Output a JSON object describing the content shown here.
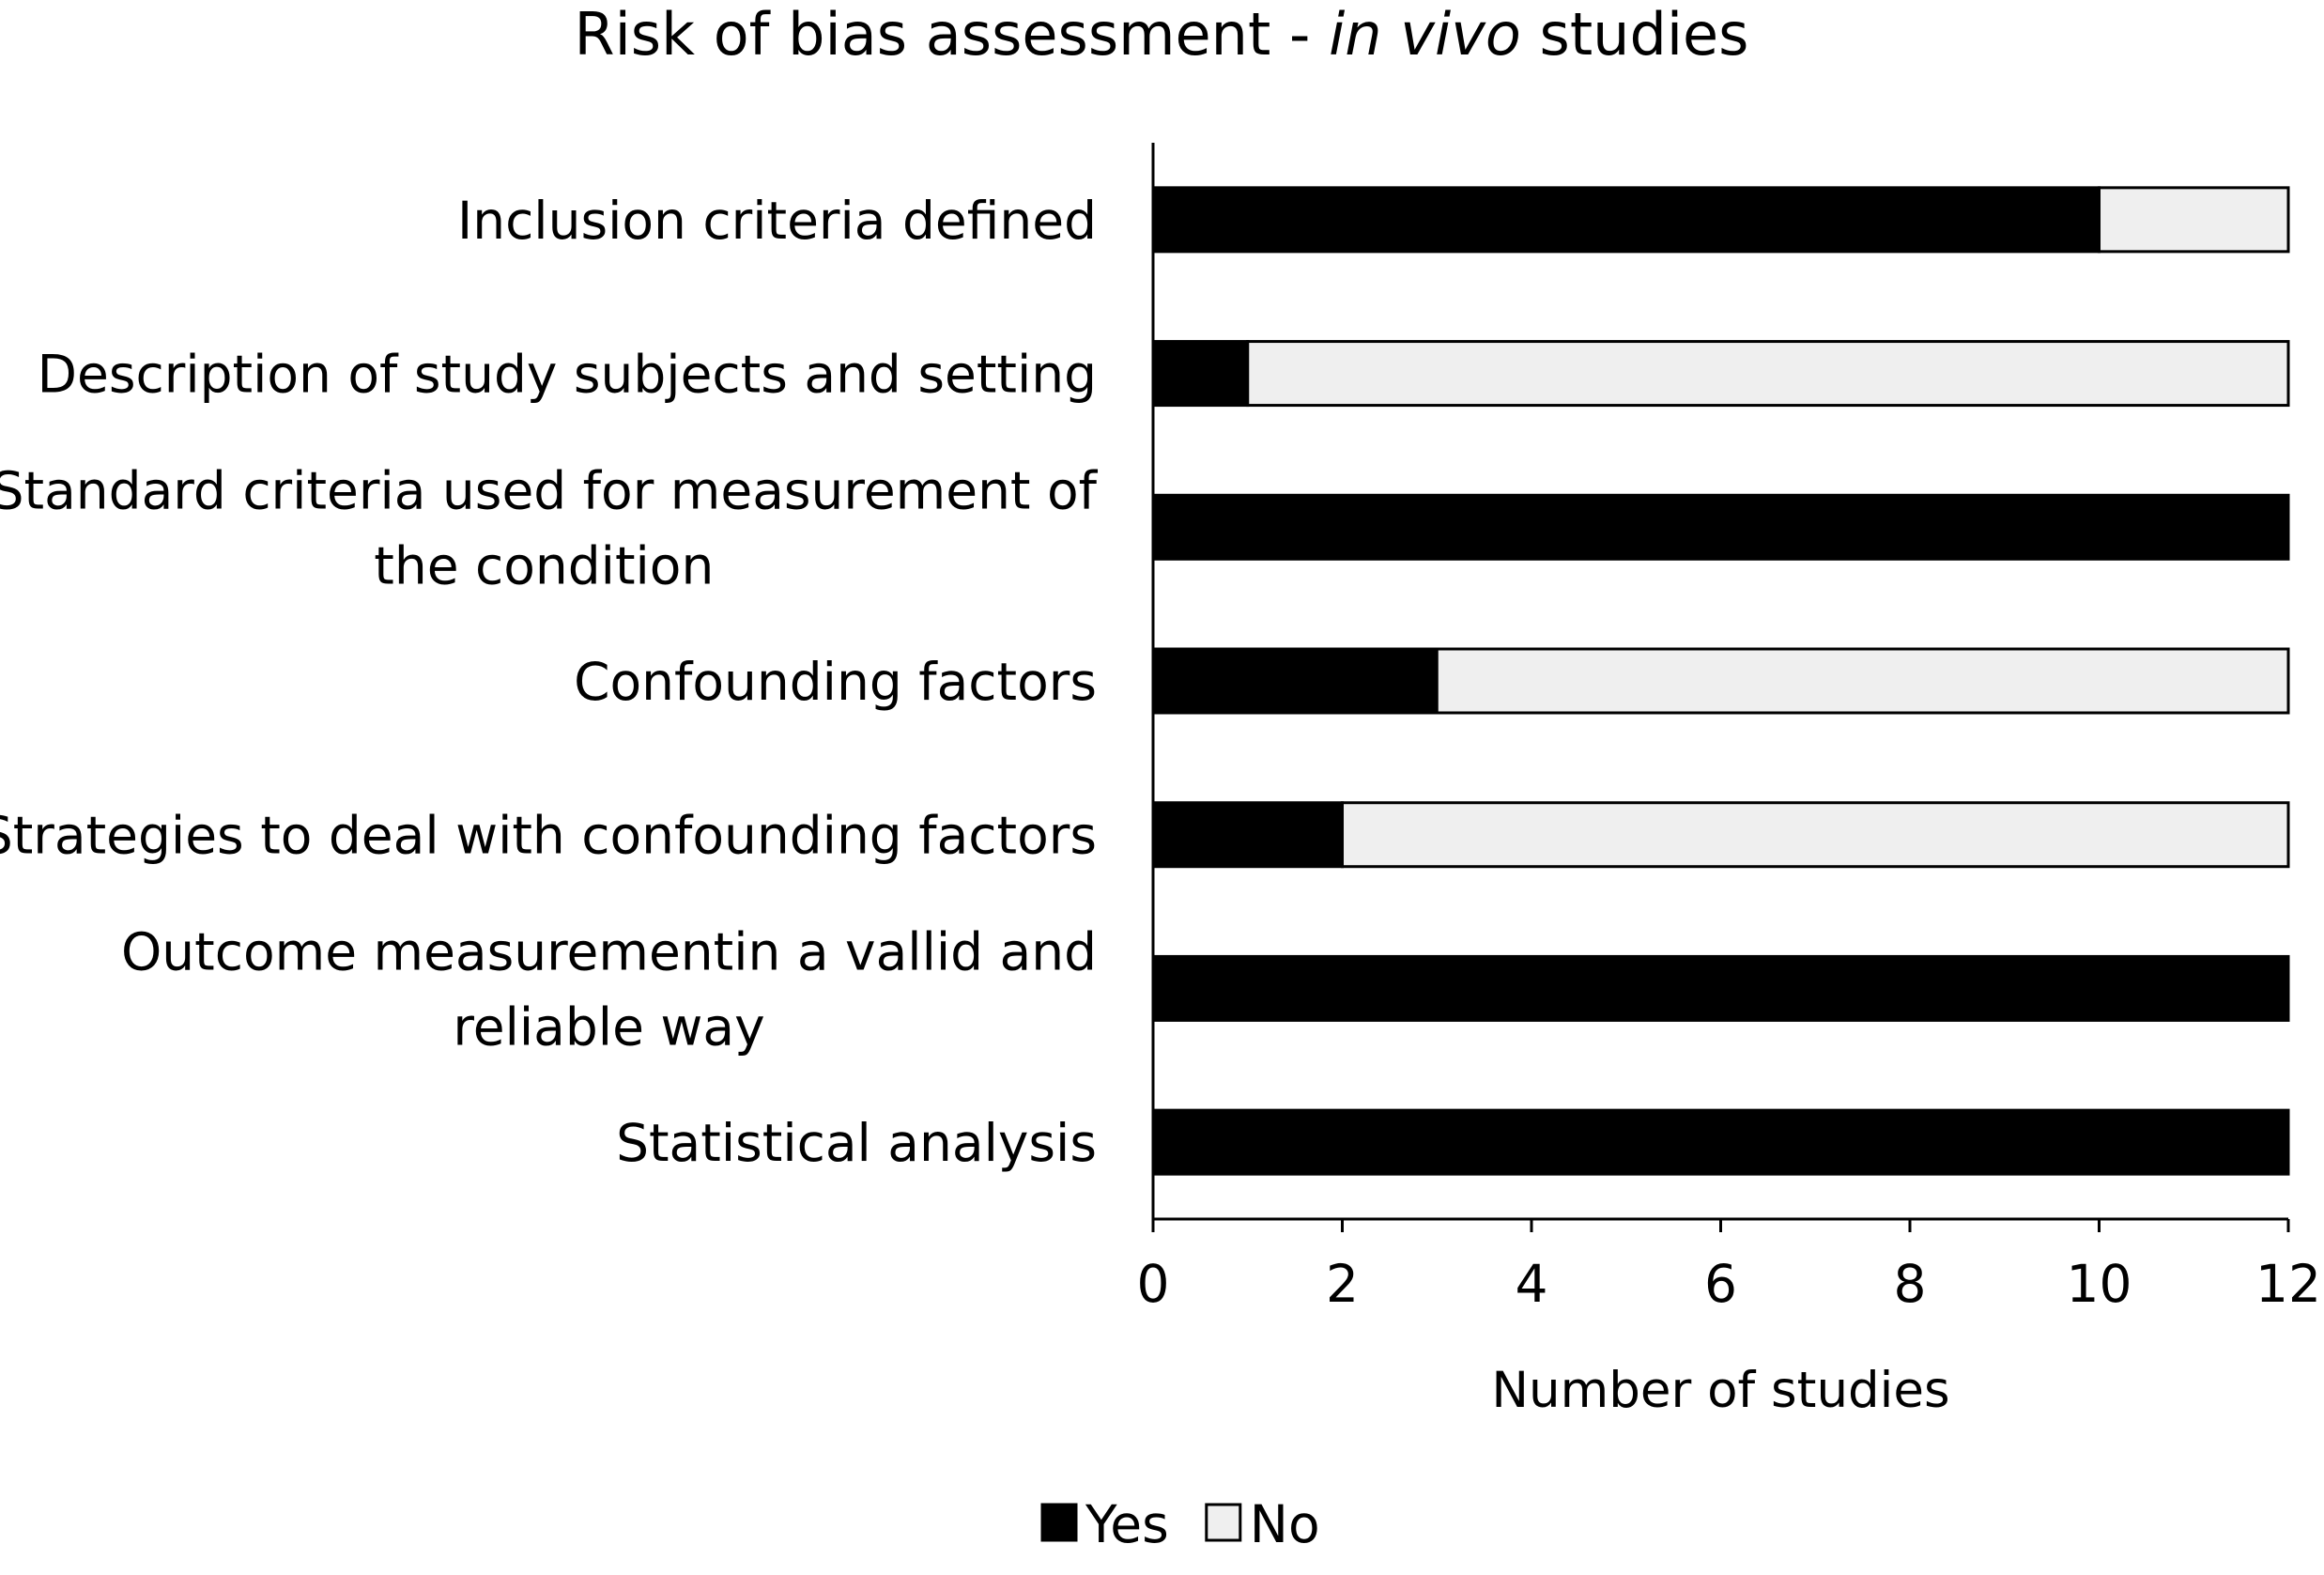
{
  "chart_data": {
    "type": "bar",
    "orientation": "horizontal",
    "stacked": true,
    "title": "Risk of bias assessment - in vivo studies",
    "title_parts": [
      {
        "text": "Risk of bias assessment - ",
        "italic": false
      },
      {
        "text": "in vivo",
        "italic": true
      },
      {
        "text": " studies",
        "italic": false
      }
    ],
    "categories": [
      "Inclusion criteria defined",
      "Description of study subjects and setting",
      "Standard criteria used for measurement of the condition",
      "Confounding factors",
      "Strategies to deal with confounding factors",
      "Outcome measurementin a vallid and reliable way",
      "Statistical analysis"
    ],
    "category_lines": [
      [
        "Inclusion criteria defined"
      ],
      [
        "Description of study subjects and setting"
      ],
      [
        "Standard criteria used for measurement of",
        "the condition"
      ],
      [
        "Confounding factors"
      ],
      [
        "Strategies to deal with confounding factors"
      ],
      [
        "Outcome measurementin a vallid and",
        "reliable way"
      ],
      [
        "Statistical analysis"
      ]
    ],
    "series": [
      {
        "name": "Yes",
        "color": "#000000",
        "values": [
          10,
          1,
          12,
          3,
          2,
          12,
          12
        ]
      },
      {
        "name": "No",
        "color": "#efefef",
        "values": [
          2,
          11,
          0,
          9,
          10,
          0,
          0
        ]
      }
    ],
    "xlabel": "Number of studies",
    "ylabel": "",
    "xlim": [
      0,
      12
    ],
    "xticks": [
      0,
      2,
      4,
      6,
      8,
      10,
      12
    ],
    "grid": false,
    "legend_position": "bottom-center"
  }
}
